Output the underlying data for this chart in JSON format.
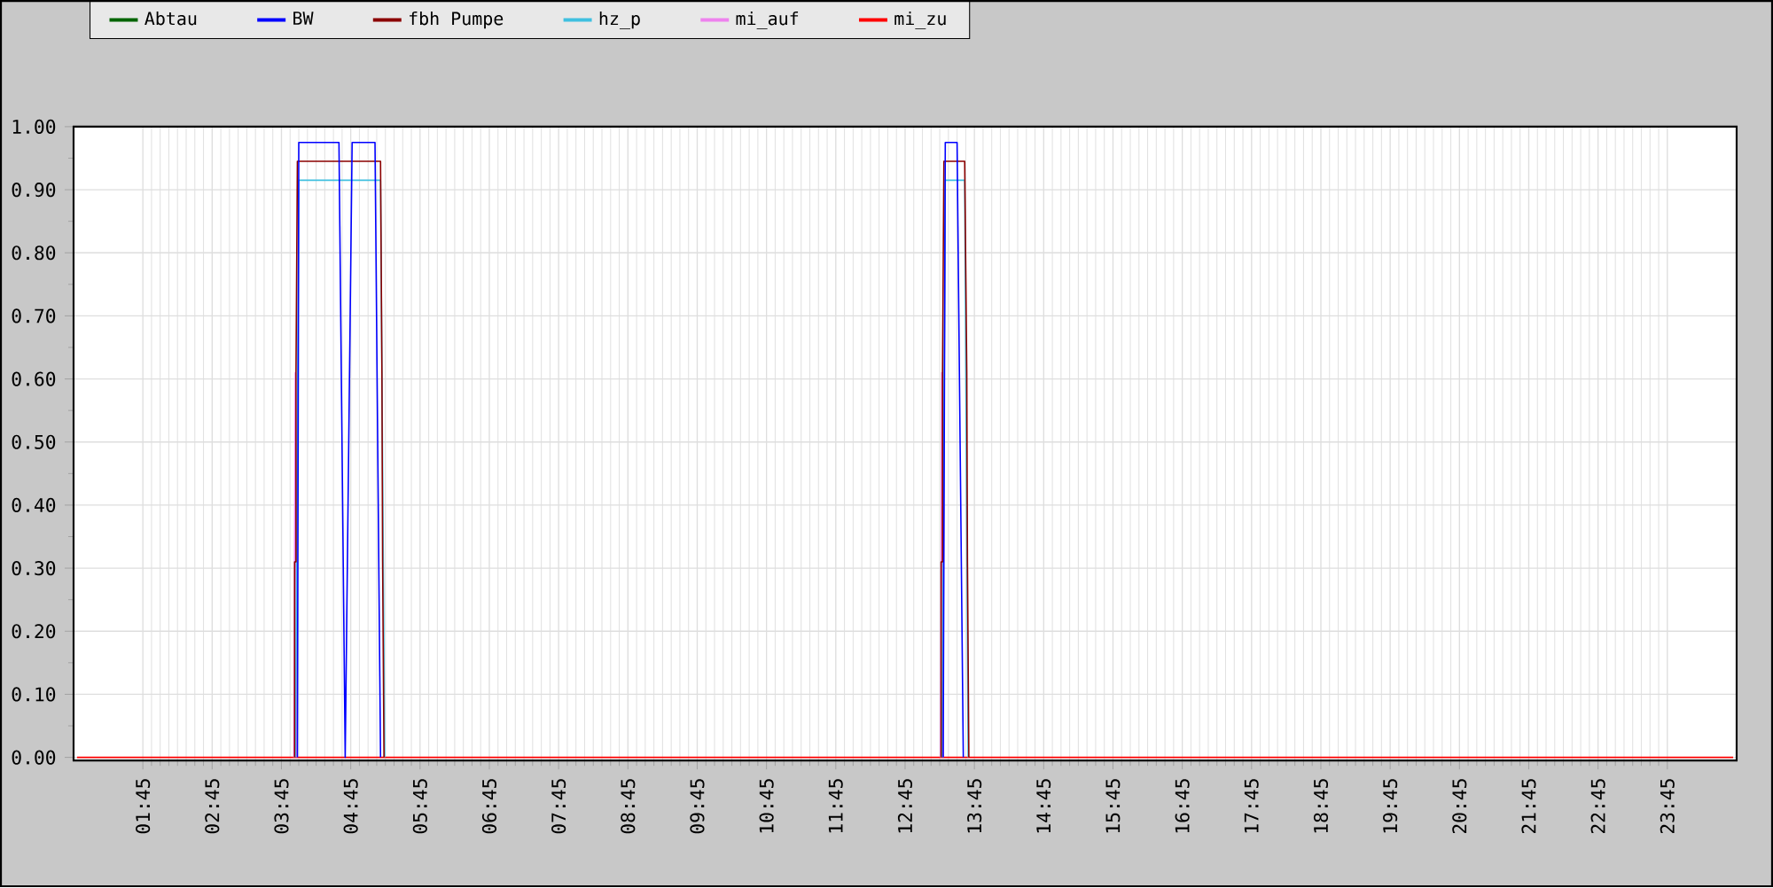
{
  "chart_data": {
    "type": "line",
    "xlim": [
      0.75,
      24.75
    ],
    "ylim": [
      -0.005,
      1
    ],
    "xticks": [
      {
        "value": 1.75,
        "label": "01:45"
      },
      {
        "value": 2.75,
        "label": "02:45"
      },
      {
        "value": 3.75,
        "label": "03:45"
      },
      {
        "value": 4.75,
        "label": "04:45"
      },
      {
        "value": 5.75,
        "label": "05:45"
      },
      {
        "value": 6.75,
        "label": "06:45"
      },
      {
        "value": 7.75,
        "label": "07:45"
      },
      {
        "value": 8.75,
        "label": "08:45"
      },
      {
        "value": 9.75,
        "label": "09:45"
      },
      {
        "value": 10.75,
        "label": "10:45"
      },
      {
        "value": 11.75,
        "label": "11:45"
      },
      {
        "value": 12.75,
        "label": "12:45"
      },
      {
        "value": 13.75,
        "label": "13:45"
      },
      {
        "value": 14.75,
        "label": "14:45"
      },
      {
        "value": 15.75,
        "label": "15:45"
      },
      {
        "value": 16.75,
        "label": "16:45"
      },
      {
        "value": 17.75,
        "label": "17:45"
      },
      {
        "value": 18.75,
        "label": "18:45"
      },
      {
        "value": 19.75,
        "label": "19:45"
      },
      {
        "value": 20.75,
        "label": "20:45"
      },
      {
        "value": 21.75,
        "label": "21:45"
      },
      {
        "value": 22.75,
        "label": "22:45"
      },
      {
        "value": 23.75,
        "label": "23:45"
      }
    ],
    "yticks": [
      {
        "value": 0,
        "label": "0.00"
      },
      {
        "value": 0.1,
        "label": "0.10"
      },
      {
        "value": 0.2,
        "label": "0.20"
      },
      {
        "value": 0.3,
        "label": "0.30"
      },
      {
        "value": 0.4,
        "label": "0.40"
      },
      {
        "value": 0.5,
        "label": "0.50"
      },
      {
        "value": 0.6,
        "label": "0.60"
      },
      {
        "value": 0.7,
        "label": "0.70"
      },
      {
        "value": 0.8,
        "label": "0.80"
      },
      {
        "value": 0.9,
        "label": "0.90"
      },
      {
        "value": 1,
        "label": "1.00"
      }
    ],
    "grid": true,
    "legend": "top",
    "marker": "none",
    "line_style": "solid",
    "series": [
      {
        "name": "Abtau",
        "color": "#006400"
      },
      {
        "name": "BW",
        "color": "#0000ff",
        "x": [
          3.98,
          4.0,
          4.58,
          4.67,
          4.77,
          5.1,
          5.18,
          null,
          13.3,
          13.33,
          13.5,
          13.59
        ],
        "values": [
          0,
          0.975,
          0.975,
          0,
          0.975,
          0.975,
          0,
          null,
          0,
          0.975,
          0.975,
          0
        ]
      },
      {
        "name": "fbh Pumpe",
        "color": "#8b0000",
        "x": [
          3.94,
          3.94,
          3.96,
          3.96,
          3.98,
          5.18,
          5.2,
          5.21,
          5.23,
          null,
          13.27,
          13.27,
          13.29,
          13.29,
          13.31,
          13.61,
          13.64,
          13.65,
          13.67
        ],
        "values": [
          0,
          0.31,
          0.31,
          0.61,
          0.945,
          0.945,
          0.61,
          0.31,
          0,
          null,
          0,
          0.31,
          0.31,
          0.61,
          0.945,
          0.945,
          0.61,
          0.31,
          0
        ]
      },
      {
        "name": "hz_p",
        "color": "#40c0e0",
        "x": [
          3.95,
          3.97,
          4.0,
          5.18,
          5.24,
          null,
          13.28,
          13.3,
          13.33,
          13.61,
          13.66
        ],
        "values": [
          0,
          0.3,
          0.915,
          0.915,
          0,
          null,
          0,
          0.3,
          0.915,
          0.915,
          0
        ]
      },
      {
        "name": "mi_auf",
        "color": "#ee82ee",
        "x": [
          3.93,
          3.95,
          3.97,
          null,
          13.26,
          13.28,
          13.3
        ],
        "values": [
          0,
          0.61,
          0,
          null,
          0,
          0.61,
          0
        ]
      },
      {
        "name": "mi_zu",
        "color": "#ff0000",
        "x": [
          0.8,
          24.7
        ],
        "values": [
          0,
          0
        ]
      }
    ]
  }
}
